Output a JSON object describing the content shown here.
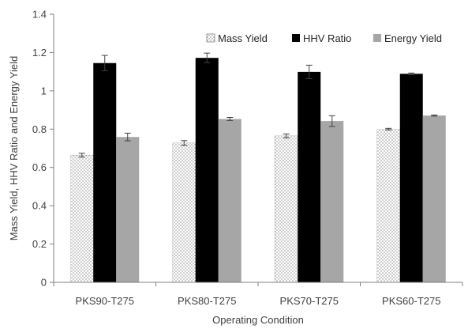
{
  "chart_data": {
    "type": "bar",
    "title": "",
    "xlabel": "Operating Condition",
    "ylabel": "Mass Yield, HHV Ratio and Energy Yield",
    "ylim": [
      0,
      1.4
    ],
    "yticks": [
      0,
      0.2,
      0.4,
      0.6,
      0.8,
      1,
      1.2,
      1.4
    ],
    "ytick_labels": [
      "0",
      "0.2",
      "0.4",
      "0.6",
      "0.8",
      "1",
      "1.2",
      "1.4"
    ],
    "categories": [
      "PKS90-T275",
      "PKS80-T275",
      "PKS70-T275",
      "PKS60-T275"
    ],
    "series": [
      {
        "name": "Mass Yield",
        "values": [
          0.664,
          0.728,
          0.765,
          0.8
        ],
        "errors": [
          0.01,
          0.012,
          0.01,
          0.004
        ],
        "fill": "dotted"
      },
      {
        "name": "HHV Ratio",
        "values": [
          1.145,
          1.172,
          1.099,
          1.089
        ],
        "errors": [
          0.04,
          0.025,
          0.035,
          0.004
        ],
        "fill": "#000000"
      },
      {
        "name": "Energy Yield",
        "values": [
          0.759,
          0.853,
          0.842,
          0.871
        ],
        "errors": [
          0.02,
          0.008,
          0.028,
          0.003
        ],
        "fill": "#a6a6a6"
      }
    ],
    "grid": false,
    "legend_position": "top-right",
    "error_bars": true
  }
}
